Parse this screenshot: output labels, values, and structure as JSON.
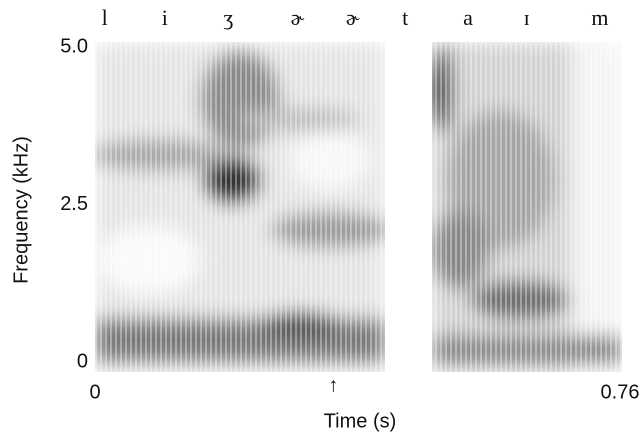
{
  "chart_data": {
    "type": "spectrogram",
    "xlabel": "Time (s)",
    "ylabel": "Frequency (kHz)",
    "xlim": [
      0,
      0.76
    ],
    "ylim": [
      0,
      5
    ],
    "xticks": [
      0,
      0.76
    ],
    "yticks": [
      0,
      2.5,
      {
        "value": 5,
        "label": "5.0"
      }
    ],
    "phonemes": {
      "labels": [
        "l",
        "i",
        "ʒ",
        "ɚ",
        "ɚ",
        "t",
        "a",
        "ɪ",
        "m"
      ],
      "x": [
        0.014,
        0.101,
        0.193,
        0.293,
        0.373,
        0.449,
        0.54,
        0.625,
        0.731
      ]
    },
    "annotations": [
      {
        "text": "↑",
        "x": 0.345
      }
    ]
  }
}
